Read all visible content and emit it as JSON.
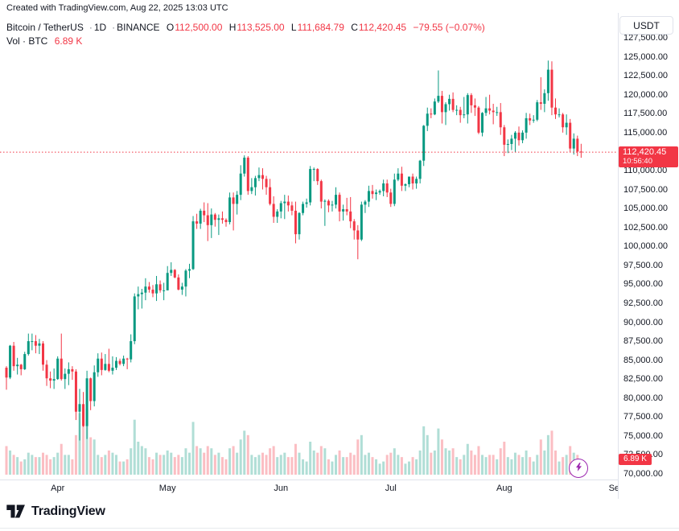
{
  "attribution": "Created with TradingView.com, Aug 22, 2025 13:03 UTC",
  "toolbar": {
    "currency_label": "USDT"
  },
  "legend": {
    "symbol": "Bitcoin / TetherUS",
    "separator": "·",
    "interval": "1D",
    "exchange": "BINANCE",
    "open_label": "O",
    "open": "112,500.00",
    "high_label": "H",
    "high": "113,525.00",
    "low_label": "L",
    "low": "111,684.79",
    "close_label": "C",
    "close": "112,420.45",
    "change": "−79.55 (−0.07%)",
    "volume_label": "Vol · BTC",
    "volume_value": "6.89 K"
  },
  "price_axis": {
    "labels": [
      "127,500.00",
      "125,000.00",
      "122,500.00",
      "120,000.00",
      "117,500.00",
      "115,000.00",
      "112,500.00",
      "110,000.00",
      "107,500.00",
      "105,000.00",
      "102,500.00",
      "100,000.00",
      "97,500.00",
      "95,000.00",
      "92,500.00",
      "90,000.00",
      "87,500.00",
      "85,000.00",
      "82,500.00",
      "80,000.00",
      "77,500.00",
      "75,000.00",
      "72,500.00",
      "70,000.00"
    ],
    "current_price_tag": {
      "price": "112,420.45",
      "countdown": "10:56:40"
    },
    "volume_badge": "6.89 K"
  },
  "time_axis": {
    "months": [
      {
        "label": "Apr",
        "index": 14
      },
      {
        "label": "May",
        "index": 44
      },
      {
        "label": "Jun",
        "index": 75
      },
      {
        "label": "Jul",
        "index": 105
      },
      {
        "label": "Aug",
        "index": 136
      },
      {
        "label": "Se",
        "index": 166
      }
    ]
  },
  "footer": {
    "brand": "TradingView"
  },
  "colors": {
    "up": "#089981",
    "down": "#f23645",
    "accent": "#f23645",
    "text": "#131722",
    "muted": "#787b86",
    "border": "#e0e3eb",
    "flash": "#9c27b0"
  },
  "chart_data": {
    "type": "candlestick",
    "title": "Bitcoin / TetherUS · 1D · BINANCE",
    "interval": "1D",
    "start_date": "2025-03-18",
    "end_date": "2025-08-22",
    "price_range": [
      70000,
      127500
    ],
    "current_price": 112420.45,
    "current_price_line_style": "dotted",
    "volume_unit": "K BTC",
    "candles": [
      [
        84000,
        84200,
        81100,
        82700
      ],
      [
        82700,
        87000,
        82500,
        86900
      ],
      [
        86900,
        87400,
        83600,
        84200
      ],
      [
        84200,
        85300,
        83100,
        84400
      ],
      [
        84400,
        84500,
        83000,
        83800
      ],
      [
        83800,
        86100,
        83700,
        85800
      ],
      [
        85800,
        88500,
        85600,
        87500
      ],
      [
        87500,
        88500,
        86300,
        87500
      ],
      [
        87500,
        88300,
        85900,
        86900
      ],
      [
        86900,
        87800,
        85800,
        87200
      ],
      [
        87200,
        87500,
        83600,
        84400
      ],
      [
        84400,
        85000,
        81600,
        82600
      ],
      [
        82600,
        83500,
        81300,
        82300
      ],
      [
        82300,
        83900,
        81200,
        82500
      ],
      [
        82500,
        85500,
        82400,
        85200
      ],
      [
        85200,
        88500,
        82300,
        82500
      ],
      [
        82500,
        83900,
        81200,
        83200
      ],
      [
        83200,
        84700,
        81700,
        83800
      ],
      [
        83800,
        84200,
        82400,
        83500
      ],
      [
        83500,
        83800,
        77100,
        78200
      ],
      [
        78200,
        81200,
        74400,
        79200
      ],
      [
        79200,
        80800,
        76200,
        76300
      ],
      [
        76300,
        83600,
        74600,
        82600
      ],
      [
        82600,
        82700,
        78400,
        79600
      ],
      [
        79600,
        84300,
        78900,
        83400
      ],
      [
        83400,
        85900,
        82800,
        85200
      ],
      [
        85200,
        86000,
        83000,
        83700
      ],
      [
        83700,
        85800,
        83600,
        84500
      ],
      [
        84500,
        86500,
        83400,
        83600
      ],
      [
        83600,
        85500,
        83100,
        84000
      ],
      [
        84000,
        85400,
        83700,
        84900
      ],
      [
        84900,
        85200,
        84300,
        84500
      ],
      [
        84500,
        85600,
        84200,
        85200
      ],
      [
        85200,
        85300,
        83800,
        85100
      ],
      [
        85100,
        88400,
        84700,
        87500
      ],
      [
        87500,
        93800,
        87100,
        93400
      ],
      [
        93400,
        94700,
        91700,
        93700
      ],
      [
        93700,
        94400,
        91800,
        93900
      ],
      [
        93900,
        95800,
        92900,
        94700
      ],
      [
        94700,
        95300,
        93900,
        94300
      ],
      [
        94300,
        94900,
        93300,
        93800
      ],
      [
        93800,
        96100,
        92800,
        95000
      ],
      [
        95000,
        95500,
        93900,
        94200
      ],
      [
        94200,
        95200,
        92900,
        94200
      ],
      [
        94200,
        97400,
        94200,
        96500
      ],
      [
        96500,
        97900,
        96100,
        96900
      ],
      [
        96900,
        97000,
        95800,
        95900
      ],
      [
        95900,
        96300,
        94200,
        94300
      ],
      [
        94300,
        95200,
        93600,
        94700
      ],
      [
        94700,
        97000,
        93400,
        96800
      ],
      [
        96800,
        97700,
        95800,
        97000
      ],
      [
        97000,
        104000,
        96900,
        103300
      ],
      [
        103300,
        104300,
        102300,
        103000
      ],
      [
        103000,
        104960,
        102300,
        104700
      ],
      [
        104700,
        105800,
        103200,
        104100
      ],
      [
        104100,
        105700,
        100700,
        102800
      ],
      [
        102800,
        105000,
        101100,
        104200
      ],
      [
        104200,
        104400,
        102600,
        103500
      ],
      [
        103500,
        104200,
        101500,
        103700
      ],
      [
        103700,
        104600,
        103000,
        103500
      ],
      [
        103500,
        103700,
        102600,
        103200
      ],
      [
        103200,
        107100,
        102900,
        106450
      ],
      [
        106450,
        107100,
        102100,
        105600
      ],
      [
        105600,
        107300,
        104200,
        106800
      ],
      [
        106800,
        110700,
        106100,
        109600
      ],
      [
        109600,
        112000,
        109200,
        111700
      ],
      [
        111700,
        111900,
        106800,
        107300
      ],
      [
        107300,
        109000,
        106900,
        107800
      ],
      [
        107800,
        109300,
        106700,
        109000
      ],
      [
        109000,
        110400,
        108600,
        109400
      ],
      [
        109400,
        110300,
        107500,
        108900
      ],
      [
        108900,
        109300,
        106800,
        107800
      ],
      [
        107800,
        108900,
        105400,
        105600
      ],
      [
        105600,
        106600,
        103100,
        103900
      ],
      [
        103900,
        104900,
        103100,
        104600
      ],
      [
        104600,
        106000,
        103700,
        105700
      ],
      [
        105700,
        106800,
        103600,
        105900
      ],
      [
        105900,
        106700,
        104600,
        105400
      ],
      [
        105400,
        105900,
        104100,
        104700
      ],
      [
        104700,
        105900,
        100400,
        101600
      ],
      [
        101600,
        104500,
        100900,
        104400
      ],
      [
        104400,
        105900,
        104100,
        105600
      ],
      [
        105600,
        106300,
        105100,
        105800
      ],
      [
        105800,
        110600,
        105400,
        110200
      ],
      [
        110200,
        110400,
        108600,
        110200
      ],
      [
        110200,
        110300,
        108100,
        108600
      ],
      [
        108600,
        108800,
        105000,
        105900
      ],
      [
        105900,
        106200,
        102700,
        106000
      ],
      [
        106000,
        106200,
        104500,
        105400
      ],
      [
        105400,
        106000,
        104600,
        105500
      ],
      [
        105500,
        107800,
        105000,
        106800
      ],
      [
        106800,
        107100,
        103300,
        104600
      ],
      [
        104600,
        105500,
        103400,
        104900
      ],
      [
        104900,
        106400,
        104100,
        104600
      ],
      [
        104600,
        106500,
        102400,
        103300
      ],
      [
        103300,
        103600,
        100900,
        102100
      ],
      [
        102100,
        102800,
        98300,
        100900
      ],
      [
        100900,
        105900,
        100700,
        105500
      ],
      [
        105500,
        106100,
        104400,
        105900
      ],
      [
        105900,
        108000,
        105200,
        107300
      ],
      [
        107300,
        108100,
        106300,
        106900
      ],
      [
        106900,
        107500,
        106100,
        107100
      ],
      [
        107100,
        107500,
        106800,
        107300
      ],
      [
        107300,
        108800,
        106600,
        108300
      ],
      [
        108300,
        108800,
        106500,
        107100
      ],
      [
        107100,
        107600,
        105200,
        105600
      ],
      [
        105600,
        109600,
        105300,
        108800
      ],
      [
        108800,
        110300,
        108600,
        109600
      ],
      [
        109600,
        110500,
        107300,
        108000
      ],
      [
        108000,
        108300,
        107300,
        108200
      ],
      [
        108200,
        109200,
        107800,
        109200
      ],
      [
        109200,
        109600,
        107500,
        108300
      ],
      [
        108300,
        109200,
        107600,
        108900
      ],
      [
        108900,
        111400,
        108300,
        111300
      ],
      [
        111300,
        116000,
        110600,
        115900
      ],
      [
        115900,
        118300,
        115200,
        117500
      ],
      [
        117500,
        118200,
        116900,
        117400
      ],
      [
        117400,
        119500,
        117300,
        119100
      ],
      [
        119100,
        123200,
        118900,
        119850
      ],
      [
        119850,
        120500,
        116200,
        117700
      ],
      [
        117700,
        119000,
        116000,
        118750
      ],
      [
        118750,
        120000,
        117900,
        119450
      ],
      [
        119450,
        120300,
        117700,
        117990
      ],
      [
        117990,
        118600,
        117300,
        118000
      ],
      [
        118000,
        118400,
        116300,
        117300
      ],
      [
        117300,
        119700,
        116900,
        117400
      ],
      [
        117400,
        120200,
        116200,
        119950
      ],
      [
        119950,
        120200,
        117600,
        118600
      ],
      [
        118600,
        119500,
        117200,
        118300
      ],
      [
        118300,
        118500,
        114800,
        115000
      ],
      [
        115000,
        117700,
        114500,
        117600
      ],
      [
        117600,
        119700,
        117200,
        118200
      ],
      [
        118200,
        120000,
        117400,
        117900
      ],
      [
        117900,
        118800,
        116100,
        117700
      ],
      [
        117700,
        118400,
        117200,
        117700
      ],
      [
        117700,
        118900,
        114700,
        115700
      ],
      [
        115700,
        116000,
        111900,
        113400
      ],
      [
        113400,
        114100,
        112300,
        113500
      ],
      [
        113500,
        114700,
        112700,
        114200
      ],
      [
        114200,
        115200,
        112400,
        115000
      ],
      [
        115000,
        115800,
        113300,
        114000
      ],
      [
        114000,
        115300,
        113600,
        115000
      ],
      [
        115000,
        117600,
        114200,
        116900
      ],
      [
        116900,
        117500,
        116000,
        116600
      ],
      [
        116600,
        117300,
        116300,
        116700
      ],
      [
        116700,
        119300,
        116500,
        119000
      ],
      [
        119000,
        122300,
        118000,
        118800
      ],
      [
        118800,
        120700,
        117700,
        120200
      ],
      [
        120200,
        124500,
        119200,
        123300
      ],
      [
        123300,
        124400,
        117300,
        118300
      ],
      [
        118300,
        119500,
        116800,
        117400
      ],
      [
        117400,
        118200,
        117000,
        117400
      ],
      [
        117400,
        117600,
        115000,
        115700
      ],
      [
        115700,
        117400,
        114700,
        116300
      ],
      [
        116300,
        116800,
        112400,
        112900
      ],
      [
        112900,
        114900,
        112100,
        114200
      ],
      [
        114200,
        114600,
        111900,
        112500
      ],
      [
        112500,
        113525,
        111684.79,
        112420.45
      ]
    ],
    "volumes": [
      13,
      11,
      9,
      8,
      6,
      7,
      10,
      9,
      8,
      8,
      10,
      9,
      7,
      8,
      10,
      14,
      9,
      9,
      7,
      18,
      28,
      22,
      30,
      17,
      16,
      9,
      8,
      9,
      11,
      10,
      9,
      6,
      6,
      7,
      12,
      25,
      15,
      13,
      12,
      8,
      7,
      10,
      9,
      9,
      11,
      10,
      8,
      9,
      8,
      12,
      10,
      24,
      13,
      12,
      10,
      13,
      12,
      9,
      10,
      8,
      7,
      12,
      13,
      10,
      16,
      20,
      18,
      9,
      8,
      9,
      10,
      9,
      12,
      13,
      8,
      9,
      10,
      8,
      8,
      14,
      10,
      7,
      6,
      15,
      11,
      10,
      13,
      12,
      7,
      6,
      9,
      11,
      8,
      8,
      10,
      9,
      16,
      18,
      9,
      10,
      8,
      7,
      5,
      6,
      9,
      10,
      12,
      9,
      8,
      5,
      6,
      8,
      7,
      11,
      22,
      18,
      10,
      11,
      21,
      16,
      12,
      11,
      12,
      8,
      7,
      9,
      14,
      11,
      9,
      13,
      9,
      8,
      9,
      9,
      7,
      12,
      15,
      8,
      7,
      10,
      9,
      8,
      11,
      8,
      6,
      9,
      16,
      11,
      18,
      20,
      11,
      6,
      8,
      9,
      13,
      10,
      9,
      6.89
    ]
  }
}
